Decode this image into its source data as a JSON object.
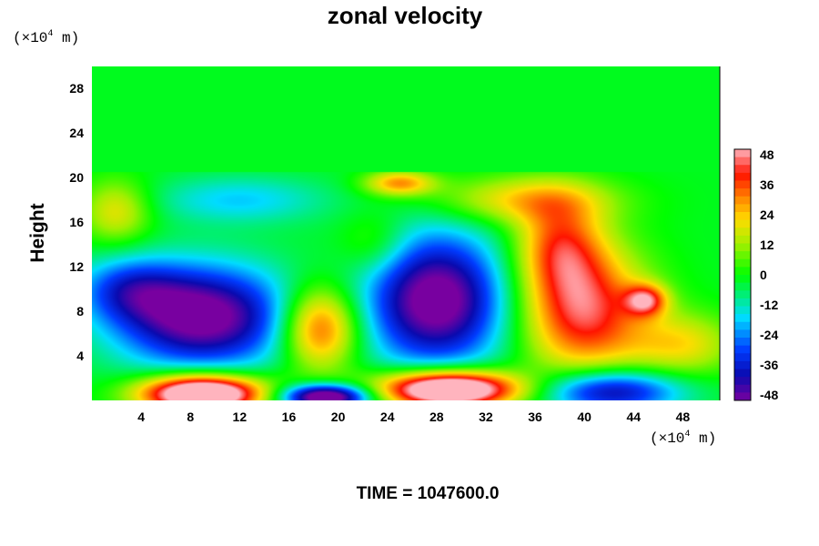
{
  "chart_data": {
    "type": "heatmap",
    "title": "zonal velocity",
    "ylabel": "Height",
    "xlabel": "",
    "x_unit": {
      "prefix": "(×10",
      "exp": "4",
      "suffix": " m)"
    },
    "y_unit": {
      "prefix": "(×10",
      "exp": "4",
      "suffix": " m)"
    },
    "xlim": [
      0,
      51
    ],
    "ylim": [
      0,
      30
    ],
    "xticks": [
      4,
      8,
      12,
      16,
      20,
      24,
      28,
      32,
      36,
      40,
      44,
      48
    ],
    "yticks": [
      4,
      8,
      12,
      16,
      20,
      24,
      28
    ],
    "colorbar": {
      "range": [
        -50,
        50
      ],
      "ticks": [
        48,
        36,
        24,
        12,
        0,
        -12,
        -24,
        -36,
        -48
      ]
    },
    "background_value": -2,
    "top_layer": {
      "height_from": 20.5,
      "value": -2
    },
    "features": [
      {
        "x": 9,
        "y": 7.5,
        "sx": 5.0,
        "sy": 3.2,
        "value": -55
      },
      {
        "x": 3,
        "y": 10,
        "sx": 3.0,
        "sy": 2.0,
        "value": -25
      },
      {
        "x": 28,
        "y": 9,
        "sx": 4.0,
        "sy": 4.2,
        "value": -56
      },
      {
        "x": 18.5,
        "y": 6.5,
        "sx": 2.2,
        "sy": 2.6,
        "value": 40
      },
      {
        "x": 40,
        "y": 8,
        "sx": 3.6,
        "sy": 4.0,
        "value": 44
      },
      {
        "x": 38,
        "y": 14,
        "sx": 2.5,
        "sy": 3.0,
        "value": 30
      },
      {
        "x": 35,
        "y": 18,
        "sx": 5.0,
        "sy": 1.5,
        "value": 22
      },
      {
        "x": 45,
        "y": 9,
        "sx": 1.2,
        "sy": 1.0,
        "value": 35
      },
      {
        "x": 9,
        "y": 0.6,
        "sx": 3.5,
        "sy": 1.2,
        "value": 80
      },
      {
        "x": 29,
        "y": 1.0,
        "sx": 4.0,
        "sy": 1.2,
        "value": 80
      },
      {
        "x": 19,
        "y": 0.3,
        "sx": 2.5,
        "sy": 0.8,
        "value": -65
      },
      {
        "x": 42,
        "y": 0.8,
        "sx": 4.0,
        "sy": 1.4,
        "value": -45
      },
      {
        "x": 2,
        "y": 17,
        "sx": 2.0,
        "sy": 2.0,
        "value": 20
      },
      {
        "x": 25,
        "y": 19.5,
        "sx": 2.0,
        "sy": 0.8,
        "value": 30
      },
      {
        "x": 12,
        "y": 18,
        "sx": 5.0,
        "sy": 1.5,
        "value": -18
      },
      {
        "x": 48,
        "y": 5,
        "sx": 3.0,
        "sy": 2.0,
        "value": 20
      },
      {
        "x": 23,
        "y": 14,
        "sx": 2.0,
        "sy": 2.0,
        "value": 10
      }
    ]
  },
  "footer": {
    "time_label": "TIME = 1047600.0"
  }
}
